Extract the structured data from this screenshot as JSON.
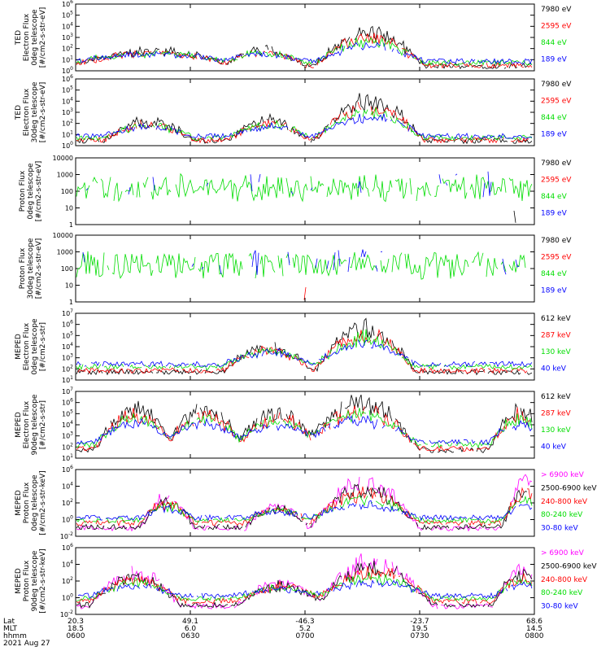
{
  "chart_data": [
    {
      "type": "line",
      "ylabel": [
        "TED",
        "Electron Flux",
        "0deg telescope",
        "[#/cm2-s-str-eV]"
      ],
      "yscale": "log",
      "ylim": [
        1,
        1000000
      ],
      "yticks": [
        "10^0",
        "10^1",
        "10^2",
        "10^3",
        "10^4",
        "10^5",
        "10^6"
      ],
      "legend": [
        "7980 eV",
        "2595 eV",
        "844 eV",
        "189 eV"
      ],
      "colors": [
        "#000000",
        "#ff0000",
        "#00dd00",
        "#0000ff"
      ],
      "bursts": [
        [
          0.17,
          0.18,
          30
        ],
        [
          0.41,
          0.09,
          40
        ],
        [
          0.64,
          0.12,
          2000
        ]
      ]
    },
    {
      "type": "line",
      "ylabel": [
        "TED",
        "Electron Flux",
        "30deg telescope",
        "[#/cm2-s-str-eV]"
      ],
      "yscale": "log",
      "ylim": [
        1,
        1000000
      ],
      "yticks": [
        "10^0",
        "10^1",
        "10^2",
        "10^3",
        "10^4",
        "10^5",
        "10^6"
      ],
      "legend": [
        "7980 eV",
        "2595 eV",
        "844 eV",
        "189 eV"
      ],
      "colors": [
        "#000000",
        "#ff0000",
        "#00dd00",
        "#0000ff"
      ],
      "bursts": [
        [
          0.16,
          0.1,
          80
        ],
        [
          0.42,
          0.09,
          100
        ],
        [
          0.64,
          0.12,
          10000
        ]
      ]
    },
    {
      "type": "line",
      "ylabel": [
        "Proton Flux",
        "0deg telescope",
        "[#/cm2-s-str-eV]"
      ],
      "yscale": "log",
      "ylim": [
        1,
        10000
      ],
      "yticks": [
        "1",
        "10",
        "100",
        "1000",
        "10000"
      ],
      "legend": [
        "7980 eV",
        "2595 eV",
        "844 eV",
        "189 eV"
      ],
      "colors": [
        "#000000",
        "#ff0000",
        "#00dd00",
        "#0000ff"
      ],
      "bursts": []
    },
    {
      "type": "line",
      "ylabel": [
        "Proton Flux",
        "30deg telescope",
        "[#/cm2-s-str-eV]"
      ],
      "yscale": "log",
      "ylim": [
        1,
        10000
      ],
      "yticks": [
        "1",
        "10",
        "100",
        "1000",
        "10000"
      ],
      "legend": [
        "7980 eV",
        "2595 eV",
        "844 eV",
        "189 eV"
      ],
      "colors": [
        "#000000",
        "#ff0000",
        "#00dd00",
        "#0000ff"
      ],
      "bursts": []
    },
    {
      "type": "line",
      "ylabel": [
        "MEPED",
        "Electron Flux",
        "0deg telescope",
        "[#/cm2-s-str]"
      ],
      "yscale": "log",
      "ylim": [
        10,
        10000000
      ],
      "yticks": [
        "10^1",
        "10^2",
        "10^3",
        "10^4",
        "10^5",
        "10^6",
        "10^7"
      ],
      "legend": [
        "612 keV",
        "287 keV",
        "130 keV",
        "40 keV"
      ],
      "colors": [
        "#000000",
        "#ff0000",
        "#00dd00",
        "#0000ff"
      ],
      "bursts": [
        [
          0.42,
          0.1,
          3000
        ],
        [
          0.63,
          0.11,
          300000
        ]
      ]
    },
    {
      "type": "line",
      "ylabel": [
        "MEPED",
        "Electron Flux",
        "90deg telescope",
        "[#/cm2-s-str]"
      ],
      "yscale": "log",
      "ylim": [
        10,
        10000000
      ],
      "yticks": [
        "10^1",
        "10^2",
        "10^3",
        "10^4",
        "10^5",
        "10^6",
        "10^7"
      ],
      "legend": [
        "612 keV",
        "287 keV",
        "130 keV",
        "40 keV"
      ],
      "colors": [
        "#000000",
        "#ff0000",
        "#00dd00",
        "#0000ff"
      ],
      "bursts": [
        [
          0.13,
          0.09,
          100000
        ],
        [
          0.28,
          0.09,
          100000
        ],
        [
          0.44,
          0.1,
          50000
        ],
        [
          0.62,
          0.13,
          500000
        ],
        [
          0.97,
          0.07,
          100000
        ]
      ]
    },
    {
      "type": "line",
      "ylabel": [
        "MEPED",
        "Proton Flux",
        "0deg telescope",
        "[#/cm2-s-str-keV]"
      ],
      "yscale": "log",
      "ylim": [
        0.01,
        1000000
      ],
      "yticks": [
        "10^-2",
        "10^0",
        "10^2",
        "10^4",
        "10^6"
      ],
      "legend": [
        "> 6900 keV",
        "2500-6900 keV",
        "240-800 keV",
        "80-240 keV",
        "30-80 keV"
      ],
      "colors": [
        "#ff00ff",
        "#000000",
        "#ff0000",
        "#00dd00",
        "#0000ff"
      ],
      "bursts": [
        [
          0.2,
          0.06,
          100
        ],
        [
          0.44,
          0.07,
          10
        ],
        [
          0.63,
          0.12,
          10000
        ],
        [
          0.98,
          0.05,
          10000
        ]
      ]
    },
    {
      "type": "line",
      "ylabel": [
        "MEPED",
        "Proton Flux",
        "90deg telescope",
        "[#/cm2-s-str-keV]"
      ],
      "yscale": "log",
      "ylim": [
        0.01,
        1000000
      ],
      "yticks": [
        "10^-2",
        "10^0",
        "10^2",
        "10^4",
        "10^6"
      ],
      "legend": [
        "> 6900 keV",
        "2500-6900 keV",
        "240-800 keV",
        "80-240 keV",
        "30-80 keV"
      ],
      "colors": [
        "#ff00ff",
        "#000000",
        "#ff0000",
        "#00dd00",
        "#0000ff"
      ],
      "bursts": [
        [
          0.13,
          0.1,
          300
        ],
        [
          0.45,
          0.1,
          10
        ],
        [
          0.65,
          0.13,
          10000
        ],
        [
          0.97,
          0.06,
          1000
        ]
      ]
    }
  ],
  "x_axis": {
    "rows": [
      "Lat",
      "MLT",
      "hhmm"
    ],
    "ticks": [
      {
        "lat": "20.3",
        "mlt": "18.5",
        "hhmm": "0600"
      },
      {
        "lat": "49.1",
        "mlt": "6.0",
        "hhmm": "0630"
      },
      {
        "lat": "-46.3",
        "mlt": "5.2",
        "hhmm": "0700"
      },
      {
        "lat": "-23.7",
        "mlt": "19.5",
        "hhmm": "0730"
      },
      {
        "lat": "68.6",
        "mlt": "14.5",
        "hhmm": "0800"
      }
    ],
    "date": "2021 Aug 27"
  }
}
